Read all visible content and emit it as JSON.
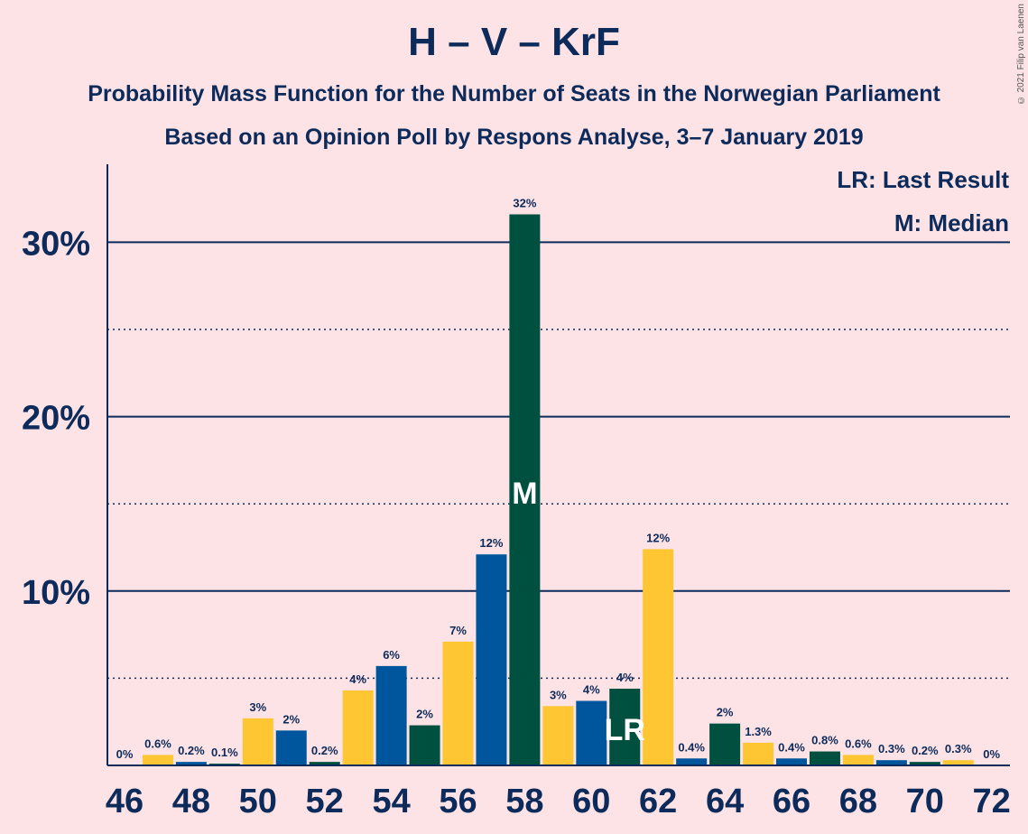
{
  "title": "H – V – KrF",
  "subtitle1": "Probability Mass Function for the Number of Seats in the Norwegian Parliament",
  "subtitle2": "Based on an Opinion Poll by Respons Analyse, 3–7 January 2019",
  "copyright": "© 2021 Filip van Laenen",
  "legend": {
    "last_result": "LR: Last Result",
    "median": "M: Median"
  },
  "colors": {
    "background": "#fde3e6",
    "text": "#0c2a5a",
    "yellow": "#fdc632",
    "blue": "#00569c",
    "green": "#005040",
    "grid": "#0c2a5a"
  },
  "chart_data": {
    "type": "bar",
    "xlim": [
      46,
      72
    ],
    "ylim": [
      0,
      34
    ],
    "x_tick_labels": [
      "46",
      "48",
      "50",
      "52",
      "54",
      "56",
      "58",
      "60",
      "62",
      "64",
      "66",
      "68",
      "70",
      "72"
    ],
    "y_tick_labels": [
      "10%",
      "20%",
      "30%"
    ],
    "median_seats": 58,
    "median_marker": "M",
    "last_result_seats": 61,
    "last_result_marker": "LR",
    "bars": [
      {
        "seats": 46,
        "value": 0.0,
        "label": "0%",
        "color": "yellow"
      },
      {
        "seats": 47,
        "value": 0.6,
        "label": "0.6%",
        "color": "yellow"
      },
      {
        "seats": 48,
        "value": 0.2,
        "label": "0.2%",
        "color": "blue"
      },
      {
        "seats": 49,
        "value": 0.1,
        "label": "0.1%",
        "color": "green"
      },
      {
        "seats": 50,
        "value": 2.7,
        "label": "3%",
        "color": "yellow"
      },
      {
        "seats": 51,
        "value": 2.0,
        "label": "2%",
        "color": "blue"
      },
      {
        "seats": 52,
        "value": 0.2,
        "label": "0.2%",
        "color": "green"
      },
      {
        "seats": 53,
        "value": 4.3,
        "label": "4%",
        "color": "yellow"
      },
      {
        "seats": 54,
        "value": 5.7,
        "label": "6%",
        "color": "blue"
      },
      {
        "seats": 55,
        "value": 2.3,
        "label": "2%",
        "color": "green"
      },
      {
        "seats": 56,
        "value": 7.1,
        "label": "7%",
        "color": "yellow"
      },
      {
        "seats": 57,
        "value": 12.1,
        "label": "12%",
        "color": "blue"
      },
      {
        "seats": 58,
        "value": 31.6,
        "label": "32%",
        "color": "green"
      },
      {
        "seats": 59,
        "value": 3.4,
        "label": "3%",
        "color": "yellow"
      },
      {
        "seats": 60,
        "value": 3.7,
        "label": "4%",
        "color": "blue"
      },
      {
        "seats": 61,
        "value": 4.4,
        "label": "4%",
        "color": "green"
      },
      {
        "seats": 62,
        "value": 12.4,
        "label": "12%",
        "color": "yellow"
      },
      {
        "seats": 63,
        "value": 0.4,
        "label": "0.4%",
        "color": "blue"
      },
      {
        "seats": 64,
        "value": 2.4,
        "label": "2%",
        "color": "green"
      },
      {
        "seats": 65,
        "value": 1.3,
        "label": "1.3%",
        "color": "yellow"
      },
      {
        "seats": 66,
        "value": 0.4,
        "label": "0.4%",
        "color": "blue"
      },
      {
        "seats": 67,
        "value": 0.8,
        "label": "0.8%",
        "color": "green"
      },
      {
        "seats": 68,
        "value": 0.6,
        "label": "0.6%",
        "color": "yellow"
      },
      {
        "seats": 69,
        "value": 0.3,
        "label": "0.3%",
        "color": "blue"
      },
      {
        "seats": 70,
        "value": 0.2,
        "label": "0.2%",
        "color": "green"
      },
      {
        "seats": 71,
        "value": 0.3,
        "label": "0.3%",
        "color": "yellow"
      },
      {
        "seats": 72,
        "value": 0.0,
        "label": "0%",
        "color": "blue"
      }
    ]
  }
}
